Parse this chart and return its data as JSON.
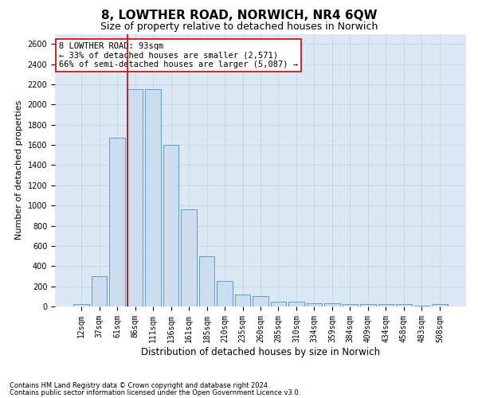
{
  "title": "8, LOWTHER ROAD, NORWICH, NR4 6QW",
  "subtitle": "Size of property relative to detached houses in Norwich",
  "xlabel": "Distribution of detached houses by size in Norwich",
  "ylabel": "Number of detached properties",
  "bar_labels": [
    "12sqm",
    "37sqm",
    "61sqm",
    "86sqm",
    "111sqm",
    "136sqm",
    "161sqm",
    "185sqm",
    "210sqm",
    "235sqm",
    "260sqm",
    "285sqm",
    "310sqm",
    "334sqm",
    "359sqm",
    "384sqm",
    "409sqm",
    "434sqm",
    "458sqm",
    "483sqm",
    "508sqm"
  ],
  "bar_values": [
    25,
    300,
    1670,
    2150,
    2150,
    1600,
    960,
    500,
    250,
    120,
    100,
    50,
    50,
    35,
    30,
    20,
    20,
    20,
    20,
    10,
    25
  ],
  "bar_color": "#ccddf0",
  "bar_edge_color": "#5b9bd5",
  "vline_color": "#cc0000",
  "annotation_line1": "8 LOWTHER ROAD: 93sqm",
  "annotation_line2": "← 33% of detached houses are smaller (2,571)",
  "annotation_line3": "66% of semi-detached houses are larger (5,087) →",
  "annotation_box_facecolor": "#ffffff",
  "annotation_box_edgecolor": "#cc0000",
  "ylim": [
    0,
    2700
  ],
  "yticks": [
    0,
    200,
    400,
    600,
    800,
    1000,
    1200,
    1400,
    1600,
    1800,
    2000,
    2200,
    2400,
    2600
  ],
  "grid_color": "#c8d4e8",
  "bg_color": "#dde8f5",
  "footer1": "Contains HM Land Registry data © Crown copyright and database right 2024.",
  "footer2": "Contains public sector information licensed under the Open Government Licence v3.0.",
  "title_fontsize": 11,
  "subtitle_fontsize": 9,
  "tick_fontsize": 7,
  "ylabel_fontsize": 8,
  "xlabel_fontsize": 8.5,
  "annotation_fontsize": 7.5,
  "footer_fontsize": 6
}
